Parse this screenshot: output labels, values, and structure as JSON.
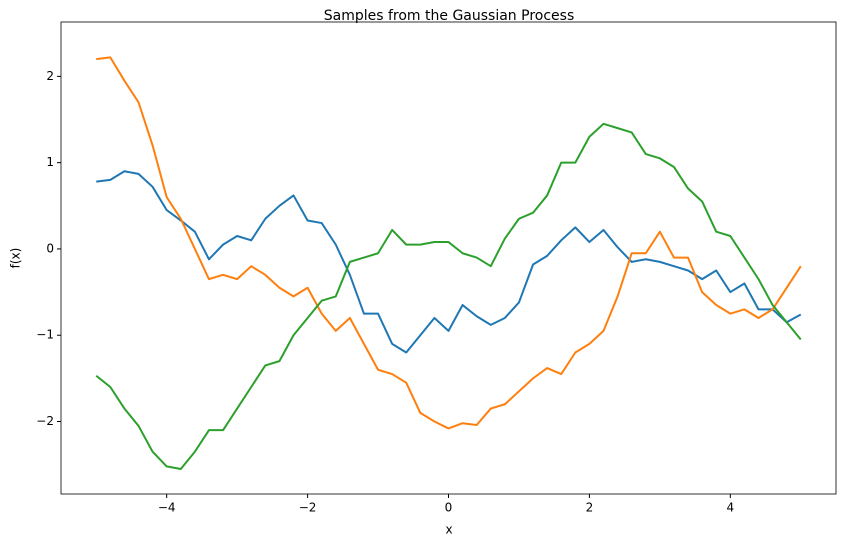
{
  "chart_data": {
    "type": "line",
    "title": "Samples from the Gaussian Process",
    "x_label": "x",
    "y_label": "f(x)",
    "x": [
      -5,
      -4.8,
      -4.6,
      -4.4,
      -4.2,
      -4,
      -3.8,
      -3.6,
      -3.4,
      -3.2,
      -3,
      -2.8,
      -2.6,
      -2.4,
      -2.2,
      -2,
      -1.8,
      -1.6,
      -1.4,
      -1.2,
      -1,
      -0.8,
      -0.6,
      -0.4,
      -0.2,
      0,
      0.2,
      0.4,
      0.6,
      0.8,
      1,
      1.2,
      1.4,
      1.6,
      1.8,
      2,
      2.2,
      2.4,
      2.6,
      2.8,
      3,
      3.2,
      3.4,
      3.6,
      3.8,
      4,
      4.2,
      4.4,
      4.6,
      4.8,
      5
    ],
    "series": [
      {
        "color": "#1f77b4",
        "values": [
          0.78,
          0.8,
          0.9,
          0.87,
          0.72,
          0.45,
          0.33,
          0.2,
          -0.12,
          0.05,
          0.15,
          0.1,
          0.35,
          0.5,
          0.62,
          0.33,
          0.3,
          0.05,
          -0.3,
          -0.75,
          -0.75,
          -1.1,
          -1.2,
          -1.0,
          -0.8,
          -0.95,
          -0.65,
          -0.78,
          -0.88,
          -0.8,
          -0.62,
          -0.18,
          -0.08,
          0.1,
          0.25,
          0.08,
          0.22,
          0.02,
          -0.15,
          -0.12,
          -0.15,
          -0.2,
          -0.25,
          -0.35,
          -0.25,
          -0.5,
          -0.4,
          -0.7,
          -0.7,
          -0.85,
          -0.76
        ]
      },
      {
        "color": "#ff7f0e",
        "values": [
          2.2,
          2.22,
          1.95,
          1.7,
          1.2,
          0.6,
          0.35,
          0.0,
          -0.35,
          -0.3,
          -0.35,
          -0.2,
          -0.3,
          -0.45,
          -0.55,
          -0.45,
          -0.75,
          -0.95,
          -0.8,
          -1.1,
          -1.4,
          -1.45,
          -1.55,
          -1.9,
          -2.0,
          -2.08,
          -2.02,
          -2.04,
          -1.85,
          -1.8,
          -1.65,
          -1.5,
          -1.38,
          -1.45,
          -1.2,
          -1.1,
          -0.95,
          -0.55,
          -0.05,
          -0.05,
          0.2,
          -0.1,
          -0.1,
          -0.5,
          -0.65,
          -0.75,
          -0.7,
          -0.8,
          -0.7,
          -0.45,
          -0.2
        ]
      },
      {
        "color": "#2ca02c",
        "values": [
          -1.47,
          -1.6,
          -1.85,
          -2.05,
          -2.35,
          -2.52,
          -2.55,
          -2.35,
          -2.1,
          -2.1,
          -1.85,
          -1.6,
          -1.35,
          -1.3,
          -1.0,
          -0.8,
          -0.6,
          -0.55,
          -0.15,
          -0.1,
          -0.05,
          0.22,
          0.05,
          0.05,
          0.08,
          0.08,
          -0.05,
          -0.1,
          -0.2,
          0.12,
          0.35,
          0.42,
          0.62,
          1.0,
          1.0,
          1.3,
          1.45,
          1.4,
          1.35,
          1.1,
          1.05,
          0.95,
          0.7,
          0.55,
          0.2,
          0.15,
          -0.1,
          -0.35,
          -0.65,
          -0.85,
          -1.05
        ]
      }
    ],
    "xlim": [
      -5.5,
      5.5
    ],
    "ylim": [
      -2.84,
      2.63
    ],
    "xticks": [
      {
        "value": -4,
        "label": "−4"
      },
      {
        "value": -2,
        "label": "−2"
      },
      0,
      2,
      4
    ],
    "yticks": [
      {
        "value": -2,
        "label": "−2"
      },
      {
        "value": -1,
        "label": "−1"
      },
      0,
      1,
      2
    ],
    "grid": false
  }
}
